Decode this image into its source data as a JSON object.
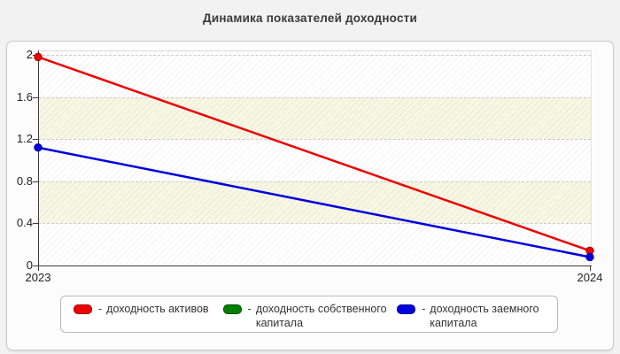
{
  "page": {
    "title": "Динамика показателей доходности",
    "background": "#f2f2f2"
  },
  "chart_data": {
    "type": "line",
    "title": "Динамика показателей доходности",
    "x_categories": [
      "2023",
      "2024"
    ],
    "yticks": [
      "0",
      "0.4",
      "0.8",
      "1.2",
      "1.6",
      "2"
    ],
    "ylim": [
      0,
      2.05
    ],
    "grid": "horizontal-dashed",
    "plot_background": "alternating white and pale-yellow bands with diagonal hatch",
    "band_color": "#f7f7e4",
    "legend_position": "bottom",
    "series": [
      {
        "name": "доходность активов",
        "color": "#ee0000",
        "marker_border": "#a80000",
        "values": [
          1.98,
          0.14
        ],
        "visible": true
      },
      {
        "name": "доходность собственного капитала",
        "color": "#008000",
        "marker_border": "#004d00",
        "values": [],
        "visible": false
      },
      {
        "name": "доходность заемного капитала",
        "color": "#0000dd",
        "marker_border": "#0000a0",
        "values": [
          1.12,
          0.08
        ],
        "visible": true
      }
    ]
  },
  "legend": {
    "separator": "-",
    "items": [
      {
        "label": "доходность активов",
        "color": "#ee0000",
        "border": "#a80000"
      },
      {
        "label": "доходность собственного капитала",
        "color": "#008000",
        "border": "#004d00"
      },
      {
        "label": "доходность заемного капитала",
        "color": "#0000dd",
        "border": "#0000a0"
      }
    ]
  }
}
